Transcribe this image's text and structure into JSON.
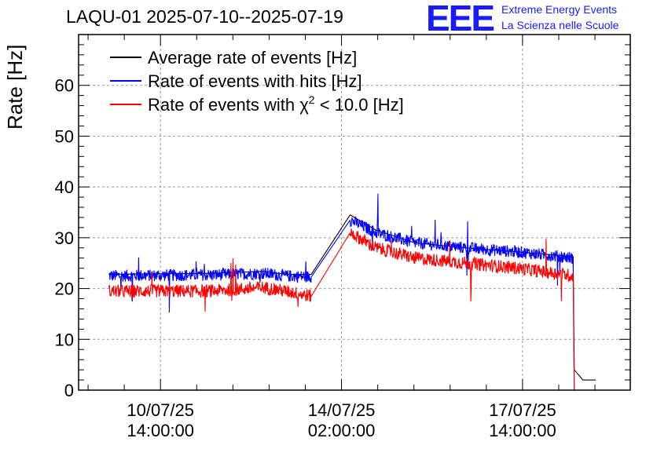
{
  "header": {
    "title": "LAQU-01 2025-07-10--2025-07-19",
    "logo_text": "EEE",
    "brand_line1": "Extreme Energy Events",
    "brand_line2": "La Scienza nelle Scuole"
  },
  "colors": {
    "average": "#000000",
    "hits": "#0000ff",
    "chi2": "#ff0000",
    "grid": "#999999",
    "logo": "#1a1aff"
  },
  "chart_data": {
    "type": "line",
    "ylabel": "Rate [Hz]",
    "ylim": [
      0,
      70
    ],
    "yticks": [
      0,
      10,
      20,
      30,
      40,
      50,
      60
    ],
    "grid": true,
    "legend_position": "top-left",
    "xlim": [
      "2025-07-09T00:00:00",
      "2025-07-19T16:00:00"
    ],
    "xticks": [
      {
        "value": "2025-07-10T14:00:00",
        "line1": "10/07/25",
        "line2": "14:00:00"
      },
      {
        "value": "2025-07-14T02:00:00",
        "line1": "14/07/25",
        "line2": "02:00:00"
      },
      {
        "value": "2025-07-17T14:00:00",
        "line1": "17/07/25",
        "line2": "14:00:00"
      }
    ],
    "series": [
      {
        "name": "Average rate of events [Hz]",
        "legend_parts": [
          "Average rate of events [Hz]"
        ],
        "color": "#000000",
        "noise": 0,
        "x": [
          "2025-07-09T14:00:00",
          "2025-07-11T14:00:00",
          "2025-07-12T14:00:00",
          "2025-07-13T00:00:00",
          "2025-07-13T12:00:00",
          "2025-07-14T06:00:00",
          "2025-07-14T18:00:00",
          "2025-07-15T12:00:00",
          "2025-07-16T12:00:00",
          "2025-07-17T12:00:00",
          "2025-07-18T13:30:00",
          "2025-07-18T14:00:00",
          "2025-07-18T18:00:00",
          "2025-07-19T00:00:00"
        ],
        "y": [
          22.8,
          23.0,
          23.4,
          22.8,
          22.8,
          34.5,
          31.5,
          29.0,
          28.0,
          27.2,
          26.3,
          4.0,
          2.0,
          2.0
        ]
      },
      {
        "name": "Rate of events with hits [Hz]",
        "legend_parts": [
          "Rate of events with hits [Hz]"
        ],
        "color": "#0000ff",
        "noise": 1.2,
        "x": [
          "2025-07-09T14:00:00",
          "2025-07-11T14:00:00",
          "2025-07-12T14:00:00",
          "2025-07-13T00:00:00",
          "2025-07-13T12:00:00",
          "2025-07-14T06:00:00",
          "2025-07-14T18:00:00",
          "2025-07-15T12:00:00",
          "2025-07-16T12:00:00",
          "2025-07-17T12:00:00",
          "2025-07-18T13:30:00",
          "2025-07-18T14:00:00"
        ],
        "y": [
          22.5,
          22.7,
          23.0,
          22.5,
          22.3,
          33.5,
          31.0,
          29.0,
          28.0,
          27.2,
          26.0,
          0.0
        ]
      },
      {
        "name": "Rate of events with χ2 < 10.0 [Hz]",
        "legend_parts": [
          "Rate of events with ",
          "χ",
          "2",
          " < 10.0 [Hz]"
        ],
        "color": "#ff0000",
        "noise": 1.3,
        "x": [
          "2025-07-09T14:00:00",
          "2025-07-11T14:00:00",
          "2025-07-12T14:00:00",
          "2025-07-13T00:00:00",
          "2025-07-13T12:00:00",
          "2025-07-14T06:00:00",
          "2025-07-14T18:00:00",
          "2025-07-15T12:00:00",
          "2025-07-16T12:00:00",
          "2025-07-17T12:00:00",
          "2025-07-18T13:30:00",
          "2025-07-18T14:00:00",
          "2025-07-19T00:00:00"
        ],
        "y": [
          19.5,
          19.5,
          20.2,
          19.5,
          18.5,
          31.0,
          28.0,
          26.0,
          25.0,
          24.0,
          22.5,
          0.0,
          0.0
        ]
      }
    ]
  }
}
